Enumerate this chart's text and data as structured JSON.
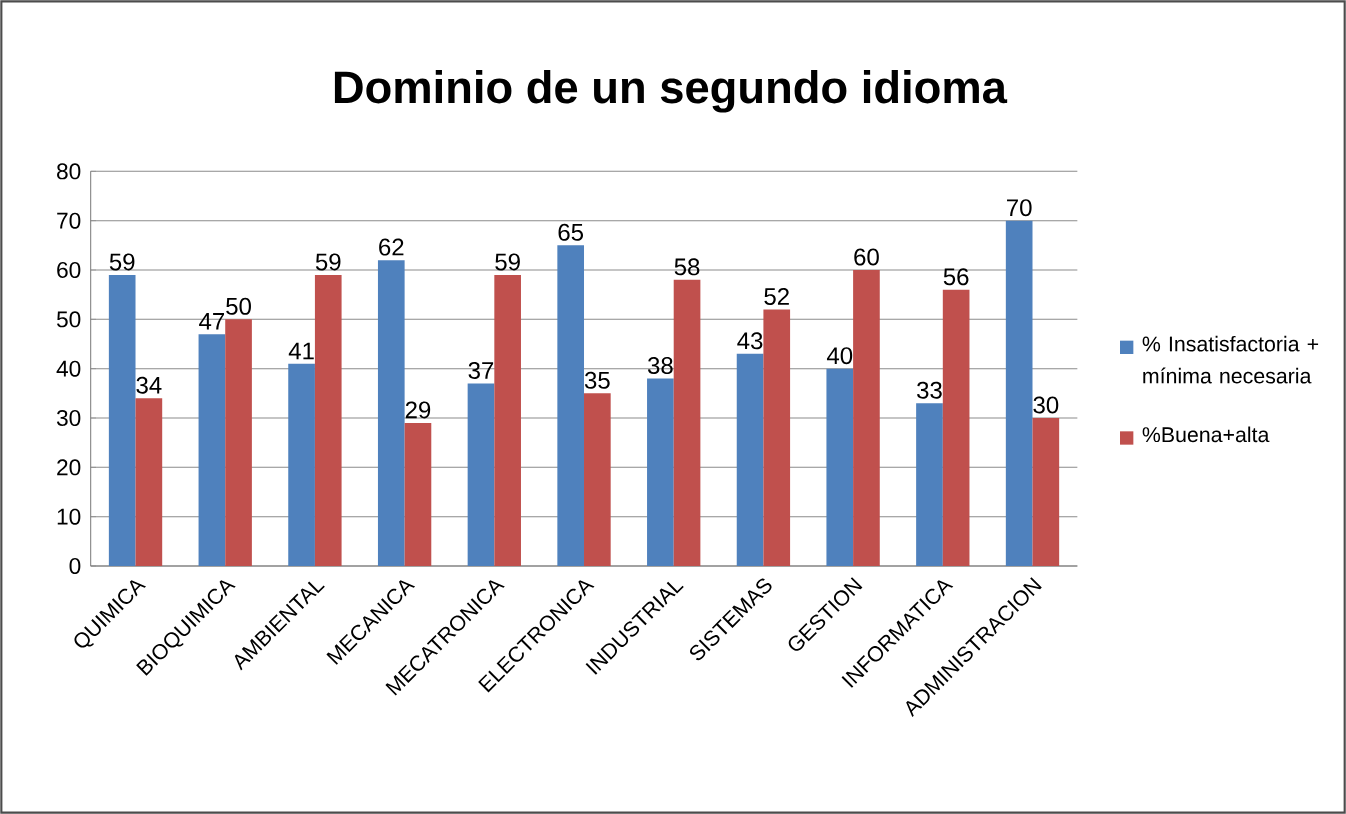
{
  "chart_data": {
    "type": "bar",
    "title": "Dominio de un segundo idioma",
    "categories": [
      "QUIMICA",
      "BIOQUIMICA",
      "AMBIENTAL",
      "MECANICA",
      "MECATRONICA",
      "ELECTRONICA",
      "INDUSTRIAL",
      "SISTEMAS",
      "GESTION",
      "INFORMATICA",
      "ADMINISTRACION"
    ],
    "series": [
      {
        "name": "% Insatisfactoria + mínima necesaria",
        "color": "#4f81bd",
        "values": [
          59,
          47,
          41,
          62,
          37,
          65,
          38,
          43,
          40,
          33,
          70
        ]
      },
      {
        "name": "%Buena+alta",
        "color": "#c0504d",
        "values": [
          34,
          50,
          59,
          29,
          59,
          35,
          58,
          52,
          60,
          56,
          30
        ]
      }
    ],
    "ylim": [
      0,
      80
    ],
    "yticks": [
      0,
      10,
      20,
      30,
      40,
      50,
      60,
      70,
      80
    ],
    "grid": "y",
    "legend": "right",
    "data_labels": true
  }
}
